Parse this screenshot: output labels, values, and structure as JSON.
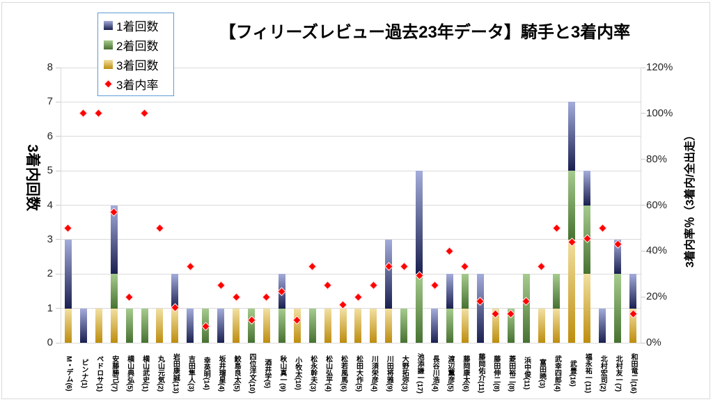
{
  "title": "【フィリーズレビュー過去23年データ】騎手と3着内率",
  "legend": [
    {
      "label": "1着回数",
      "swatch": "square",
      "color_key": "bar1"
    },
    {
      "label": "2着回数",
      "swatch": "square",
      "color_key": "bar2"
    },
    {
      "label": "3着回数",
      "swatch": "square",
      "color_key": "bar3"
    },
    {
      "label": "3着内率",
      "swatch": "diamond",
      "color_key": "marker"
    }
  ],
  "axes": {
    "left": {
      "title": "3着内回数",
      "ticks": [
        "0",
        "1",
        "2",
        "3",
        "4",
        "5",
        "6",
        "7",
        "8"
      ]
    },
    "right": {
      "title": "3着内率％（3着内/全出走）",
      "ticks": [
        "0%",
        "20%",
        "40%",
        "60%",
        "80%",
        "100%",
        "120%"
      ]
    }
  },
  "colors": {
    "bar1_top": "#A3ACDA",
    "bar1_bottom": "#1A2050",
    "bar2_top": "#A6CB8E",
    "bar2_bottom": "#477231",
    "bar3_top": "#F2E0A2",
    "bar3_bottom": "#BD8D0E",
    "marker": "#FF0000",
    "gridline": "#D9D9D9",
    "axis_tick": "#C9C9C9",
    "legend_border": "#5B9BD5"
  },
  "chart_data": {
    "type": "bar",
    "stacked": true,
    "grid": true,
    "legend_position": "top-left",
    "ylim_left": [
      0,
      8
    ],
    "ylim_right": [
      0,
      120
    ],
    "categories": [
      "М・デム(6)",
      "ピンナ(1)",
      "ペドロサ(1)",
      "安藤勝己(7)",
      "横山典弘(5)",
      "横山武史(1)",
      "丸山元気(2)",
      "岩田康誠(13)",
      "吉田隼人(3)",
      "幸英明(14)",
      "坂井瑠星(4)",
      "鮫島良太(5)",
      "四位洋文(10)",
      "酒井学(5)",
      "秋山真一(9)",
      "小牧太(10)",
      "松永幹夫(3)",
      "松山弘平(4)",
      "松若風馬(6)",
      "松田大作(5)",
      "川須栄彦(4)",
      "川田将雅(9)",
      "大野拓弥(3)",
      "池添謙一(17)",
      "長谷川浩(4)",
      "渡辺薫彦(5)",
      "藤岡康太(6)",
      "藤岡佑介(11)",
      "藤田伸二(8)",
      "菱田裕二(8)",
      "浜中俊(11)",
      "富田暁(3)",
      "武幸四郎(4)",
      "武豊(16)",
      "福永祐一(11)",
      "北村宏司(2)",
      "北村友一(7)",
      "和田竜二(16)"
    ],
    "series": [
      {
        "name": "1着回数",
        "color_key": "bar1",
        "values": [
          2,
          1,
          0,
          2,
          0,
          0,
          0,
          1,
          1,
          0,
          1,
          0,
          0,
          0,
          1,
          0,
          0,
          0,
          0,
          0,
          0,
          2,
          0,
          3,
          1,
          1,
          0,
          2,
          0,
          0,
          0,
          0,
          0,
          2,
          1,
          1,
          1,
          1
        ]
      },
      {
        "name": "2着回数",
        "color_key": "bar2",
        "values": [
          0,
          0,
          0,
          1,
          1,
          1,
          0,
          0,
          0,
          1,
          0,
          0,
          1,
          0,
          1,
          0,
          1,
          0,
          0,
          0,
          0,
          0,
          1,
          2,
          0,
          1,
          1,
          0,
          0,
          1,
          2,
          0,
          1,
          2,
          2,
          0,
          2,
          0
        ]
      },
      {
        "name": "3着回数",
        "color_key": "bar3",
        "values": [
          1,
          0,
          1,
          1,
          0,
          0,
          1,
          1,
          0,
          0,
          0,
          1,
          0,
          1,
          0,
          1,
          0,
          1,
          1,
          1,
          1,
          1,
          0,
          0,
          0,
          0,
          1,
          0,
          1,
          0,
          0,
          1,
          1,
          3,
          2,
          0,
          0,
          1
        ]
      }
    ],
    "markers": {
      "name": "3着内率",
      "unit": "%",
      "values": [
        50.0,
        100.0,
        100.0,
        57.1,
        20.0,
        100.0,
        50.0,
        15.4,
        33.3,
        7.1,
        25.0,
        20.0,
        10.0,
        20.0,
        22.2,
        10.0,
        33.3,
        25.0,
        16.7,
        20.0,
        25.0,
        33.3,
        33.3,
        29.4,
        25.0,
        40.0,
        33.3,
        18.2,
        12.5,
        12.5,
        18.2,
        33.3,
        50.0,
        43.8,
        45.5,
        50.0,
        42.9,
        12.5
      ]
    }
  }
}
